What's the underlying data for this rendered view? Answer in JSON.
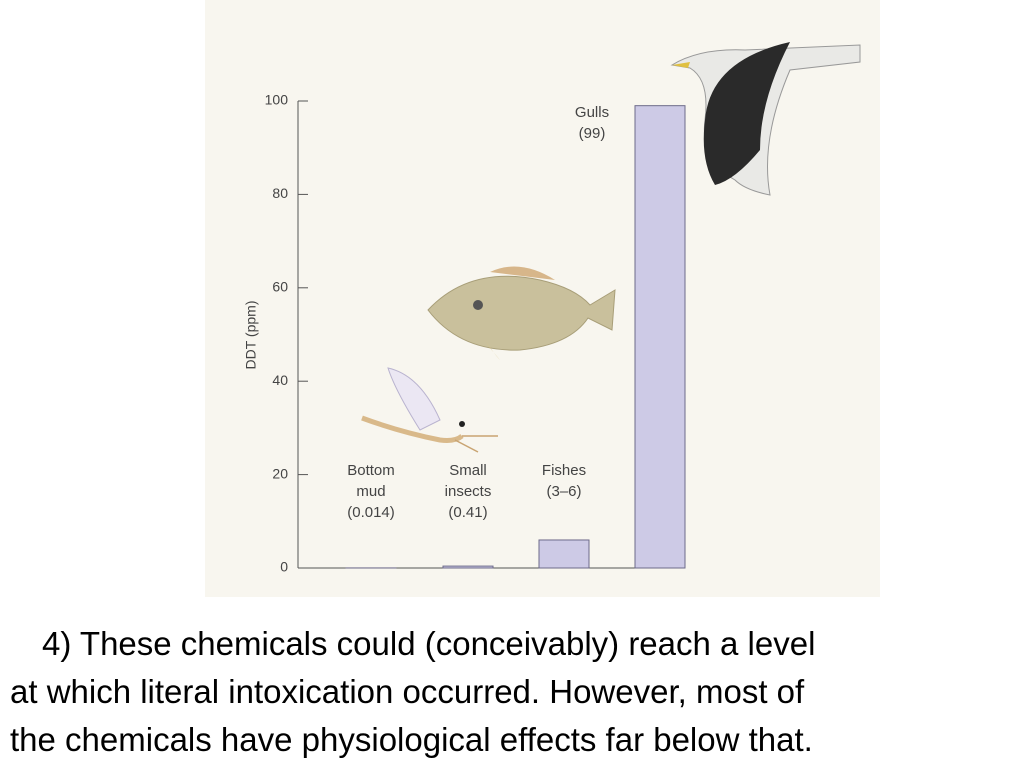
{
  "chart_data": {
    "type": "bar",
    "y_label": "DDT (ppm)",
    "categories": [
      "Bottom mud",
      "Small insects",
      "Fishes",
      "Gulls"
    ],
    "values": [
      0.014,
      0.41,
      6,
      99
    ],
    "value_labels": [
      "(0.014)",
      "(0.41)",
      "(3–6)",
      "(99)"
    ],
    "color": "#cdcae6",
    "ylim": [
      0,
      100
    ],
    "yticks": [
      0,
      20,
      40,
      60,
      80,
      100
    ]
  },
  "caption": [
    "4) These chemicals could (conceivably) reach a level",
    "at which literal intoxication occurred. However, most of",
    "the chemicals have physiological effects far below that."
  ]
}
